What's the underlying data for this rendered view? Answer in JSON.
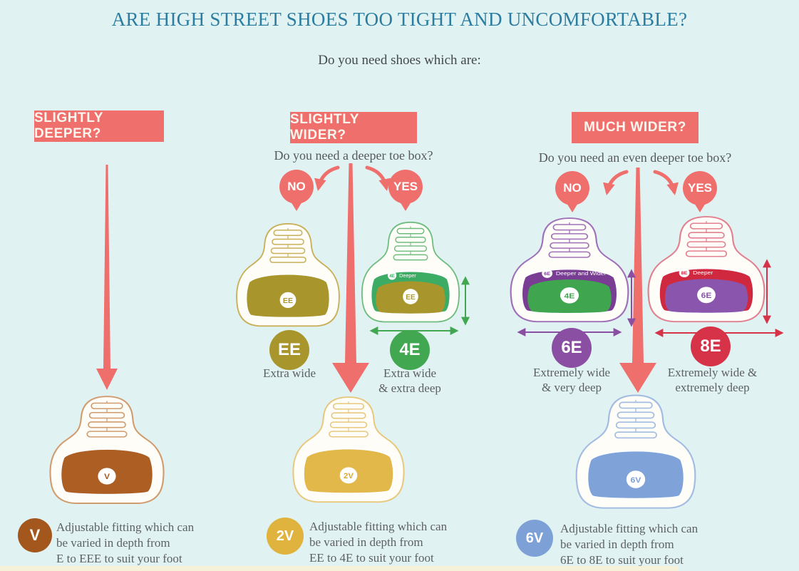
{
  "title": "ARE HIGH STREET SHOES TOO TIGHT AND UNCOMFORTABLE?",
  "subtitle": "Do you need shoes which are:",
  "colors": {
    "background": "#e1f2f3",
    "coral": "#ef6f6c",
    "title": "#2b7da1",
    "text": "#5d6164",
    "footer_strip": "#f6f2da"
  },
  "columns": [
    {
      "ribbon": "SLIGHTLY DEEPER?",
      "result": {
        "code": "V",
        "circle_color": "#a4571c",
        "shoe": {
          "outline": "#d09c6e",
          "toe": "#ad5e22",
          "badge_text": "V",
          "badge_color": "#a4571c"
        },
        "description": "Adjustable fitting which can\nbe varied in depth from\nE to EEE to suit your foot"
      }
    },
    {
      "ribbon": "SLIGHTLY WIDER?",
      "question": "Do you need a deeper toe box?",
      "no_label": "NO",
      "yes_label": "YES",
      "options": [
        {
          "fit_code": "EE",
          "circle_color": "#a8962c",
          "caption": "Extra wide",
          "shoe": {
            "outline": "#c9b05b",
            "toe": "#a8962c",
            "badge_text": "EE",
            "badge_color": "#a8962c"
          }
        },
        {
          "fit_code": "4E",
          "circle_color": "#41a751",
          "caption": "Extra wide\n& extra deep",
          "arrow_color": "#41a751",
          "shoe": {
            "outline": "#6fbc7f",
            "toe": "#a8962c",
            "badge_text": "EE",
            "badge_color": "#b09a2e",
            "band_color": "#3cab63",
            "band_code": "4E",
            "band_label": "Deeper"
          }
        }
      ],
      "result": {
        "code": "2V",
        "circle_color": "#e0b23e",
        "shoe": {
          "outline": "#e7c87e",
          "toe": "#e3b84a",
          "badge_text": "2V",
          "badge_color": "#d9a832"
        },
        "description": "Adjustable fitting which can\nbe varied in depth from\nEE to 4E to suit your foot"
      }
    },
    {
      "ribbon": "MUCH WIDER?",
      "question": "Do you need an even deeper toe box?",
      "no_label": "NO",
      "yes_label": "YES",
      "options": [
        {
          "fit_code": "6E",
          "circle_color": "#8a4fa3",
          "caption": "Extremely wide\n& very deep",
          "arrow_color": "#8a4fa3",
          "shoe": {
            "outline": "#a071b8",
            "toe": "#3fa54f",
            "badge_text": "4E",
            "badge_color": "#3fa54f",
            "band_color": "#7a3d94",
            "band_code": "6E",
            "band_label": "Deeper and Wider"
          }
        },
        {
          "fit_code": "8E",
          "circle_color": "#d63349",
          "caption": "Extremely wide &\nextremely deep",
          "arrow_color": "#d63349",
          "shoe": {
            "outline": "#e2808f",
            "toe": "#8a55ad",
            "badge_text": "6E",
            "badge_color": "#8a55ad",
            "band_color": "#d0293f",
            "band_code": "8E",
            "band_label": "Deeper"
          }
        }
      ],
      "result": {
        "code": "6V",
        "circle_color": "#7da1d6",
        "shoe": {
          "outline": "#a3bde2",
          "toe": "#7fa3d9",
          "badge_text": "6V",
          "badge_color": "#7da1d6"
        },
        "description": "Adjustable fitting which can\nbe varied in depth from\n6E to 8E to suit your foot"
      }
    }
  ]
}
